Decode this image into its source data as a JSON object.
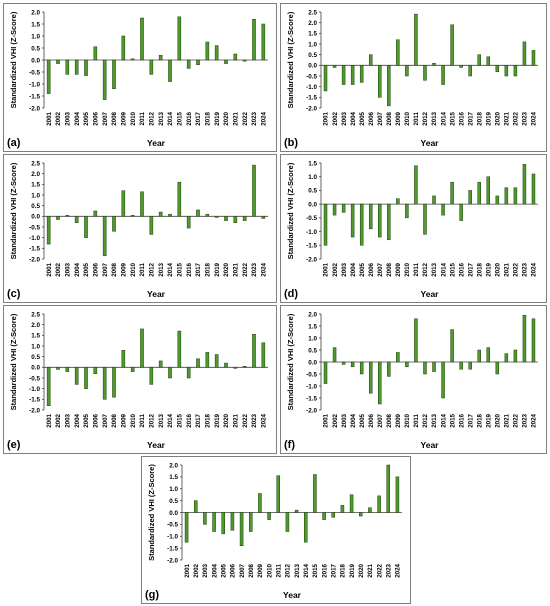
{
  "chart_data": [
    {
      "type": "bar",
      "panel_label": "(a)",
      "xlabel": "Year",
      "ylabel": "Standardized VHI (Z-Score)",
      "ylim": [
        -2.0,
        2.0
      ],
      "yticks": [
        "2.0",
        "1.5",
        "1.0",
        "0.5",
        "0.0",
        "-0.5",
        "-1.0",
        "-1.5",
        "-2.0"
      ],
      "categories": [
        "2001",
        "2002",
        "2003",
        "2004",
        "2005",
        "2006",
        "2007",
        "2008",
        "2009",
        "2010",
        "2011",
        "2012",
        "2013",
        "2014",
        "2015",
        "2016",
        "2017",
        "2018",
        "2019",
        "2020",
        "2021",
        "2022",
        "2023",
        "2024"
      ],
      "values": [
        -1.4,
        -0.15,
        -0.6,
        -0.6,
        -0.65,
        0.55,
        -1.65,
        -1.2,
        1.0,
        0.05,
        1.75,
        -0.6,
        0.2,
        -0.9,
        1.8,
        -0.35,
        -0.2,
        0.75,
        0.6,
        -0.15,
        0.25,
        -0.05,
        1.7,
        1.5
      ]
    },
    {
      "type": "bar",
      "panel_label": "(b)",
      "xlabel": "Year",
      "ylabel": "Standardized VHI (Z-Score)",
      "ylim": [
        -2.0,
        2.5
      ],
      "yticks": [
        "2.5",
        "2.0",
        "1.5",
        "1.0",
        "0.5",
        "0.0",
        "-0.5",
        "-1.0",
        "-1.5",
        "-2.0"
      ],
      "categories": [
        "2001",
        "2002",
        "2003",
        "2004",
        "2005",
        "2006",
        "2007",
        "2008",
        "2009",
        "2010",
        "2011",
        "2012",
        "2013",
        "2014",
        "2015",
        "2016",
        "2017",
        "2018",
        "2019",
        "2020",
        "2021",
        "2022",
        "2023",
        "2024"
      ],
      "values": [
        -1.2,
        -0.1,
        -0.9,
        -0.9,
        -0.8,
        0.5,
        -1.5,
        -1.9,
        1.2,
        -0.5,
        2.4,
        -0.7,
        0.1,
        -0.9,
        1.9,
        -0.1,
        -0.5,
        0.5,
        0.4,
        -0.3,
        -0.5,
        -0.5,
        1.1,
        0.7
      ]
    },
    {
      "type": "bar",
      "panel_label": "(c)",
      "xlabel": "Year",
      "ylabel": "Standardized VHI (Z-Score)",
      "ylim": [
        -2.0,
        2.5
      ],
      "yticks": [
        "2.5",
        "2.0",
        "1.5",
        "1.0",
        "0.5",
        "0.0",
        "-0.5",
        "-1.0",
        "-1.5",
        "-2.0"
      ],
      "categories": [
        "2001",
        "2002",
        "2003",
        "2004",
        "2005",
        "2006",
        "2007",
        "2008",
        "2009",
        "2010",
        "2011",
        "2012",
        "2013",
        "2014",
        "2015",
        "2016",
        "2017",
        "2018",
        "2019",
        "2020",
        "2021",
        "2022",
        "2023",
        "2024"
      ],
      "values": [
        -1.3,
        -0.15,
        0.05,
        -0.3,
        -1.0,
        0.25,
        -1.85,
        -0.7,
        1.2,
        0.05,
        1.15,
        -0.85,
        0.2,
        0.1,
        1.6,
        -0.55,
        0.3,
        0.1,
        -0.05,
        -0.2,
        -0.3,
        -0.2,
        2.4,
        -0.1
      ]
    },
    {
      "type": "bar",
      "panel_label": "(d)",
      "xlabel": "Year",
      "ylabel": "Standardized VHI (Z-Score)",
      "ylim": [
        -2.0,
        1.5
      ],
      "yticks": [
        "1.5",
        "1.0",
        "0.5",
        "0.0",
        "-0.5",
        "-1.0",
        "-1.5",
        "-2.0"
      ],
      "categories": [
        "2001",
        "2002",
        "2003",
        "2004",
        "2005",
        "2006",
        "2007",
        "2008",
        "2009",
        "2010",
        "2011",
        "2012",
        "2013",
        "2014",
        "2015",
        "2016",
        "2017",
        "2018",
        "2019",
        "2020",
        "2021",
        "2022",
        "2023",
        "2024"
      ],
      "values": [
        -1.5,
        -0.4,
        -0.3,
        -1.2,
        -1.5,
        -0.9,
        -1.2,
        -1.3,
        0.2,
        -0.5,
        1.4,
        -1.1,
        0.3,
        -0.4,
        0.8,
        -0.6,
        0.5,
        0.8,
        1.0,
        0.3,
        0.6,
        0.6,
        1.45,
        1.1
      ]
    },
    {
      "type": "bar",
      "panel_label": "(e)",
      "xlabel": "Year",
      "ylabel": "Standardized VHI (Z-Score)",
      "ylim": [
        -2.0,
        2.5
      ],
      "yticks": [
        "2.5",
        "2.0",
        "1.5",
        "1.0",
        "0.5",
        "0.0",
        "-0.5",
        "-1.0",
        "-1.5",
        "-2.0"
      ],
      "categories": [
        "2001",
        "2002",
        "2003",
        "2004",
        "2005",
        "2006",
        "2007",
        "2008",
        "2009",
        "2010",
        "2011",
        "2012",
        "2013",
        "2014",
        "2015",
        "2016",
        "2017",
        "2018",
        "2019",
        "2020",
        "2021",
        "2022",
        "2023",
        "2024"
      ],
      "values": [
        -1.8,
        -0.1,
        -0.2,
        -0.8,
        -1.0,
        -0.3,
        -1.5,
        -1.4,
        0.8,
        -0.2,
        1.8,
        -0.8,
        0.3,
        -0.5,
        1.7,
        -0.5,
        0.4,
        0.7,
        0.6,
        0.2,
        -0.05,
        0.05,
        1.55,
        1.15
      ]
    },
    {
      "type": "bar",
      "panel_label": "(f)",
      "xlabel": "Year",
      "ylabel": "Standardized VHI (Z-Score)",
      "ylim": [
        -2.0,
        2.0
      ],
      "yticks": [
        "2.0",
        "1.5",
        "1.0",
        "0.5",
        "0.0",
        "-0.5",
        "-1.0",
        "-1.5",
        "-2.0"
      ],
      "categories": [
        "2001",
        "2002",
        "2003",
        "2004",
        "2005",
        "2006",
        "2007",
        "2008",
        "2009",
        "2010",
        "2011",
        "2012",
        "2013",
        "2014",
        "2015",
        "2016",
        "2017",
        "2018",
        "2019",
        "2020",
        "2021",
        "2022",
        "2023",
        "2024"
      ],
      "values": [
        -0.9,
        0.6,
        -0.1,
        -0.2,
        -0.5,
        -1.3,
        -1.75,
        -0.6,
        0.4,
        -0.2,
        1.8,
        -0.5,
        -0.4,
        -1.5,
        1.35,
        -0.3,
        -0.3,
        0.5,
        0.6,
        -0.5,
        0.35,
        0.5,
        1.95,
        1.8
      ]
    },
    {
      "type": "bar",
      "panel_label": "(g)",
      "xlabel": "Year",
      "ylabel": "Standardized VHI (Z-Score)",
      "ylim": [
        -2.0,
        2.0
      ],
      "yticks": [
        "2.0",
        "1.5",
        "1.0",
        "0.5",
        "0.0",
        "-0.5",
        "-1.0",
        "-1.5",
        "-2.0"
      ],
      "categories": [
        "2001",
        "2002",
        "2003",
        "2004",
        "2005",
        "2006",
        "2007",
        "2008",
        "2009",
        "2010",
        "2011",
        "2012",
        "2013",
        "2014",
        "2015",
        "2016",
        "2017",
        "2018",
        "2019",
        "2020",
        "2021",
        "2022",
        "2023",
        "2024"
      ],
      "values": [
        -1.25,
        0.5,
        -0.5,
        -0.8,
        -0.9,
        -0.75,
        -1.4,
        -0.8,
        0.8,
        -0.3,
        1.55,
        -0.8,
        0.1,
        -1.25,
        1.6,
        -0.3,
        -0.2,
        0.3,
        0.75,
        -0.15,
        0.2,
        0.7,
        2.0,
        1.5
      ]
    }
  ],
  "colors": {
    "bar_fill": "#4e9a2a",
    "bar_stroke": "#1f3d10",
    "axis": "#404040",
    "panel_border": "#7f7f7f",
    "text": "#000000"
  }
}
